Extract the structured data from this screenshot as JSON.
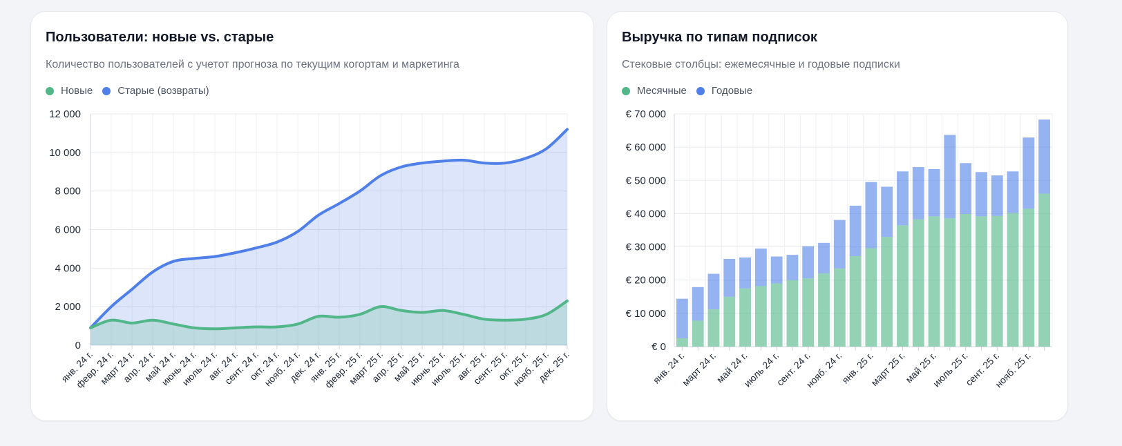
{
  "cards": {
    "users": {
      "title": "Пользователи: новые vs. старые",
      "subtitle": "Количество пользователей с учетот прогноза по текущим когортам и маркетинга",
      "legend": [
        {
          "label": "Новые",
          "color": "#52b788"
        },
        {
          "label": "Старые (возвраты)",
          "color": "#4f7fe8"
        }
      ]
    },
    "revenue": {
      "title": "Выручка по типам подписок",
      "subtitle": "Стековые столбцы: ежемесячные и годовые подписки",
      "legend": [
        {
          "label": "Месячные",
          "color": "#52b788"
        },
        {
          "label": "Годовые",
          "color": "#4f7fe8"
        }
      ]
    }
  },
  "chart_data": [
    {
      "type": "area",
      "title": "Пользователи: новые vs. старые",
      "categories": [
        "янв. 24 г.",
        "февр. 24 г.",
        "март 24 г.",
        "апр. 24 г.",
        "май 24 г.",
        "июнь 24 г.",
        "июль 24 г.",
        "авг. 24 г.",
        "сент. 24 г.",
        "окт. 24 г.",
        "нояб. 24 г.",
        "дек. 24 г.",
        "янв. 25 г.",
        "февр. 25 г.",
        "март 25 г.",
        "апр. 25 г.",
        "май 25 г.",
        "июнь 25 г.",
        "июль 25 г.",
        "авг. 25 г.",
        "сент. 25 г.",
        "окт. 25 г.",
        "нояб. 25 г.",
        "дек. 25 г."
      ],
      "series": [
        {
          "name": "Новые",
          "color": "#52b788",
          "values": [
            900,
            1300,
            1150,
            1300,
            1100,
            900,
            850,
            900,
            950,
            950,
            1100,
            1500,
            1450,
            1600,
            2000,
            1800,
            1700,
            1800,
            1600,
            1350,
            1300,
            1350,
            1600,
            2300
          ]
        },
        {
          "name": "Старые (возвраты)",
          "color": "#4f7fe8",
          "values": [
            900,
            2000,
            2900,
            3800,
            4350,
            4500,
            4600,
            4800,
            5050,
            5350,
            5900,
            6750,
            7350,
            8000,
            8800,
            9250,
            9450,
            9550,
            9600,
            9450,
            9450,
            9700,
            10200,
            11200
          ]
        }
      ],
      "ylim": [
        0,
        12000
      ],
      "yticks": [
        0,
        2000,
        4000,
        6000,
        8000,
        10000,
        12000
      ],
      "ytick_labels": [
        "0",
        "2 000",
        "4 000",
        "6 000",
        "8 000",
        "10 000",
        "12 000"
      ],
      "grid": true,
      "legend": "top-left"
    },
    {
      "type": "bar",
      "stacked": true,
      "title": "Выручка по типам подписок",
      "categories": [
        "янв. 24 г.",
        "февр. 24 г.",
        "март 24 г.",
        "апр. 24 г.",
        "май 24 г.",
        "июнь 24 г.",
        "июль 24 г.",
        "авг. 24 г.",
        "сент. 24 г.",
        "окт. 24 г.",
        "нояб. 24 г.",
        "дек. 24 г.",
        "янв. 25 г.",
        "февр. 25 г.",
        "март 25 г.",
        "апр. 25 г.",
        "май 25 г.",
        "июнь 25 г.",
        "июль 25 г.",
        "авг. 25 г.",
        "сент. 25 г.",
        "окт. 25 г.",
        "нояб. 25 г.",
        "дек. 25 г."
      ],
      "xtick_labels": [
        "янв. 24 г.",
        "",
        "март 24 г.",
        "",
        "май 24 г.",
        "",
        "июль 24 г.",
        "",
        "сент. 24 г.",
        "",
        "нояб. 24 г.",
        "",
        "янв. 25 г.",
        "",
        "март 25 г.",
        "",
        "май 25 г.",
        "",
        "июль 25 г.",
        "",
        "сент. 25 г.",
        "",
        "нояб. 25 г.",
        ""
      ],
      "series": [
        {
          "name": "Месячные",
          "color": "#52b788",
          "values": [
            2500,
            7800,
            11200,
            15000,
            17500,
            18200,
            19000,
            20000,
            20500,
            22000,
            23500,
            27200,
            29600,
            33000,
            36500,
            38300,
            39200,
            38600,
            39900,
            39200,
            39300,
            40200,
            41500,
            46000
          ]
        },
        {
          "name": "Годовые",
          "color": "#4f7fe8",
          "values": [
            11900,
            10100,
            10700,
            11400,
            9300,
            11300,
            8100,
            7600,
            9700,
            9200,
            14600,
            15200,
            19900,
            15100,
            16200,
            15700,
            14200,
            25100,
            15300,
            13300,
            12200,
            12500,
            21400,
            22300
          ]
        }
      ],
      "ylim": [
        0,
        70000
      ],
      "yticks": [
        0,
        10000,
        20000,
        30000,
        40000,
        50000,
        60000,
        70000
      ],
      "ytick_labels": [
        "€ 0",
        "€ 10 000",
        "€ 20 000",
        "€ 30 000",
        "€ 40 000",
        "€ 50 000",
        "€ 60 000",
        "€ 70 000"
      ],
      "grid": true,
      "legend": "top-left"
    }
  ]
}
